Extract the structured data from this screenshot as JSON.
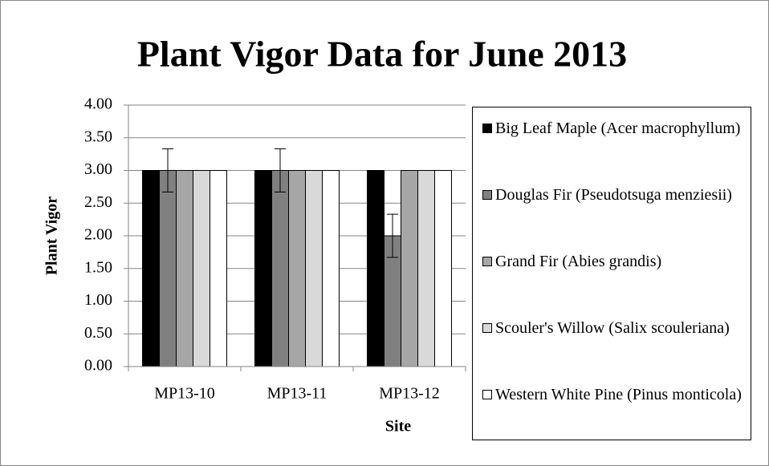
{
  "chart_data": {
    "type": "bar",
    "title": "Plant Vigor Data for June 2013",
    "x_label": "Site",
    "y_label": "Plant Vigor",
    "categories": [
      "MP13-10",
      "MP13-11",
      "MP13-12"
    ],
    "series": [
      {
        "name": "Big Leaf Maple (Acer macrophyllum)",
        "color": "#000000",
        "values": [
          3,
          3,
          3
        ]
      },
      {
        "name": "Douglas Fir (Pseudotsuga menziesii)",
        "color": "#808080",
        "values": [
          3,
          3,
          2
        ],
        "errors": [
          0.33,
          0.33,
          0.33
        ]
      },
      {
        "name": "Grand Fir (Abies grandis)",
        "color": "#a6a6a6",
        "values": [
          3,
          3,
          3
        ]
      },
      {
        "name": "Scouler's Willow (Salix scouleriana)",
        "color": "#d9d9d9",
        "values": [
          3,
          3,
          3
        ]
      },
      {
        "name": "Western White Pine (Pinus monticola)",
        "color": "#ffffff",
        "values": [
          3,
          3,
          3
        ]
      }
    ],
    "ylim": [
      0,
      4
    ],
    "yticks": [
      {
        "value": 0,
        "label": "0.00"
      },
      {
        "value": 0.5,
        "label": "0.50"
      },
      {
        "value": 1,
        "label": "1.00"
      },
      {
        "value": 1.5,
        "label": "1.50"
      },
      {
        "value": 2,
        "label": "2.00"
      },
      {
        "value": 2.5,
        "label": "2.50"
      },
      {
        "value": 3,
        "label": "3.00"
      },
      {
        "value": 3.5,
        "label": "3.50"
      },
      {
        "value": 4,
        "label": "4.00"
      }
    ],
    "grid": true,
    "legend": "right"
  }
}
